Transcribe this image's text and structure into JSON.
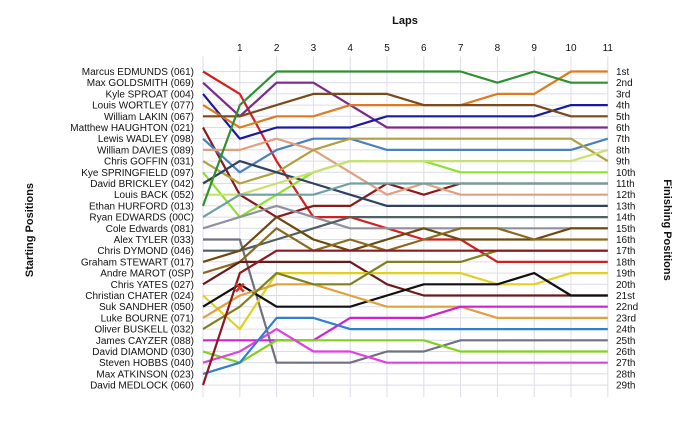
{
  "chart_data": {
    "type": "line",
    "title": "Laps",
    "ylabel_left": "Starting Positions",
    "ylabel_right": "Finishing Positions",
    "x": [
      0,
      1,
      2,
      3,
      4,
      5,
      6,
      7,
      8,
      9,
      10,
      11
    ],
    "x_tick_labels": [
      "1",
      "2",
      "3",
      "4",
      "5",
      "6",
      "7",
      "8",
      "9",
      "10",
      "11"
    ],
    "drivers": [
      "Marcus EDMUNDS (061)",
      "Max GOLDSMITH (069)",
      "Kyle SPROAT (004)",
      "Louis WORTLEY (077)",
      "William LAKIN (067)",
      "Matthew HAUGHTON (021)",
      "Lewis WADLEY (098)",
      "William DAVIES (089)",
      "Chris GOFFIN (031)",
      "Kye SPRINGFIELD (097)",
      "David BRICKLEY (042)",
      "Louis BACK (052)",
      "Ethan HURFORD (013)",
      "Ryan EDWARDS (00C)",
      "Cole Edwards (081)",
      "Alex TYLER (033)",
      "Chris DYMOND (046)",
      "Graham STEWART (017)",
      "Andre MAROT (0SP)",
      "Chris YATES (027)",
      "Christian CHATER (024)",
      "Suk SANDHER (050)",
      "Luke BOURNE (071)",
      "Oliver BUSKELL (032)",
      "James CAYZER (088)",
      "David DIAMOND (030)",
      "Steven HOBBS (040)",
      "Max ATKINSON (023)",
      "David MEDLOCK (060)"
    ],
    "finishing_labels": [
      "1st",
      "2nd",
      "3rd",
      "4th",
      "5th",
      "6th",
      "7th",
      "8th",
      "9th",
      "10th",
      "11th",
      "12th",
      "13th",
      "14th",
      "15th",
      "16th",
      "17th",
      "18th",
      "19th",
      "20th",
      "21st",
      "22nd",
      "23rd",
      "24th",
      "25th",
      "26th",
      "27th",
      "28th",
      "29th"
    ],
    "series": [
      {
        "color": "#d02020",
        "positions": [
          1,
          3,
          9,
          14,
          14,
          15,
          16,
          16,
          18,
          18,
          18,
          18
        ]
      },
      {
        "color": "#7a2a8a",
        "positions": [
          2,
          5,
          2,
          2,
          4,
          6,
          6,
          6,
          6,
          6,
          6,
          6
        ]
      },
      {
        "color": "#1a1aa0",
        "positions": [
          3,
          7,
          6,
          6,
          6,
          5,
          5,
          5,
          5,
          5,
          4,
          4
        ]
      },
      {
        "color": "#e07a20",
        "positions": [
          4,
          6,
          5,
          5,
          4,
          4,
          4,
          4,
          3,
          3,
          1,
          1
        ]
      },
      {
        "color": "#7a4a1a",
        "positions": [
          5,
          5,
          4,
          3,
          3,
          3,
          4,
          4,
          4,
          4,
          5,
          5
        ]
      },
      {
        "color": "#8a1a1a",
        "positions": [
          6,
          12,
          14,
          13,
          13,
          11,
          12,
          11,
          11,
          11,
          11,
          11
        ]
      },
      {
        "color": "#4a80c0",
        "positions": [
          7,
          10,
          8,
          7,
          7,
          8,
          8,
          8,
          8,
          8,
          8,
          7
        ]
      },
      {
        "color": "#e0a080",
        "positions": [
          8,
          8,
          7,
          8,
          10,
          12,
          11,
          12,
          12,
          12,
          12,
          12
        ]
      },
      {
        "color": "#b0a040",
        "positions": [
          9,
          11,
          10,
          8,
          7,
          7,
          7,
          7,
          7,
          7,
          7,
          9
        ]
      },
      {
        "color": "#90e030",
        "positions": [
          10,
          14,
          12,
          10,
          9,
          9,
          9,
          10,
          10,
          10,
          10,
          10
        ]
      },
      {
        "color": "#304060",
        "positions": [
          11,
          9,
          10,
          11,
          12,
          13,
          13,
          13,
          13,
          13,
          13,
          13
        ]
      },
      {
        "color": "#c8e070",
        "positions": [
          12,
          12,
          11,
          10,
          9,
          9,
          9,
          9,
          9,
          9,
          9,
          8
        ]
      },
      {
        "color": "#309030",
        "positions": [
          13,
          4,
          1,
          1,
          1,
          1,
          1,
          1,
          2,
          1,
          2,
          2
        ]
      },
      {
        "color": "#70a0a0",
        "positions": [
          14,
          12,
          12,
          12,
          11,
          11,
          11,
          11,
          11,
          11,
          11,
          11
        ]
      },
      {
        "color": "#9090a0",
        "positions": [
          15,
          14,
          13,
          14,
          15,
          15,
          15,
          15,
          15,
          15,
          15,
          15
        ]
      },
      {
        "color": "#707080",
        "positions": [
          16,
          16,
          27,
          27,
          27,
          26,
          26,
          25,
          25,
          25,
          25,
          25
        ]
      },
      {
        "color": "#506060",
        "positions": [
          17,
          17,
          16,
          15,
          14,
          14,
          14,
          14,
          14,
          14,
          14,
          14
        ]
      },
      {
        "color": "#6a4a10",
        "positions": [
          18,
          17,
          14,
          16,
          17,
          16,
          15,
          16,
          16,
          16,
          15,
          15
        ]
      },
      {
        "color": "#8a6a20",
        "positions": [
          19,
          18,
          15,
          17,
          16,
          17,
          16,
          15,
          15,
          16,
          16,
          16
        ]
      },
      {
        "color": "#6a1a1a",
        "positions": [
          20,
          18,
          18,
          18,
          18,
          20,
          21,
          21,
          21,
          21,
          21,
          21
        ]
      },
      {
        "color": "#e0d020",
        "positions": [
          21,
          24,
          19,
          19,
          19,
          19,
          19,
          19,
          20,
          20,
          19,
          19
        ]
      },
      {
        "color": "#101010",
        "positions": [
          22,
          20,
          22,
          22,
          22,
          21,
          20,
          20,
          20,
          19,
          21,
          21
        ]
      },
      {
        "color": "#e0a040",
        "positions": [
          23,
          21,
          20,
          20,
          21,
          22,
          22,
          22,
          23,
          23,
          23,
          23
        ]
      },
      {
        "color": "#808020",
        "positions": [
          24,
          22,
          19,
          20,
          20,
          18,
          18,
          18,
          17,
          17,
          17,
          17
        ]
      },
      {
        "color": "#d020d0",
        "positions": [
          25,
          25,
          25,
          25,
          23,
          23,
          23,
          22,
          22,
          22,
          22,
          22
        ]
      },
      {
        "color": "#80d020",
        "positions": [
          26,
          27,
          25,
          25,
          25,
          25,
          25,
          26,
          26,
          26,
          26,
          26
        ]
      },
      {
        "color": "#e040e0",
        "positions": [
          27,
          26,
          24,
          26,
          26,
          27,
          27,
          27,
          27,
          27,
          27,
          27
        ]
      },
      {
        "color": "#3080d0",
        "positions": [
          28,
          27,
          23,
          23,
          24,
          24,
          24,
          24,
          24,
          24,
          24,
          24
        ]
      },
      {
        "color": "#8a1a20",
        "positions": [
          29,
          19,
          17,
          17,
          17,
          17,
          17,
          17,
          17,
          17,
          17,
          17
        ]
      }
    ],
    "retired_marker": {
      "x": 1,
      "position": 20.3
    }
  }
}
